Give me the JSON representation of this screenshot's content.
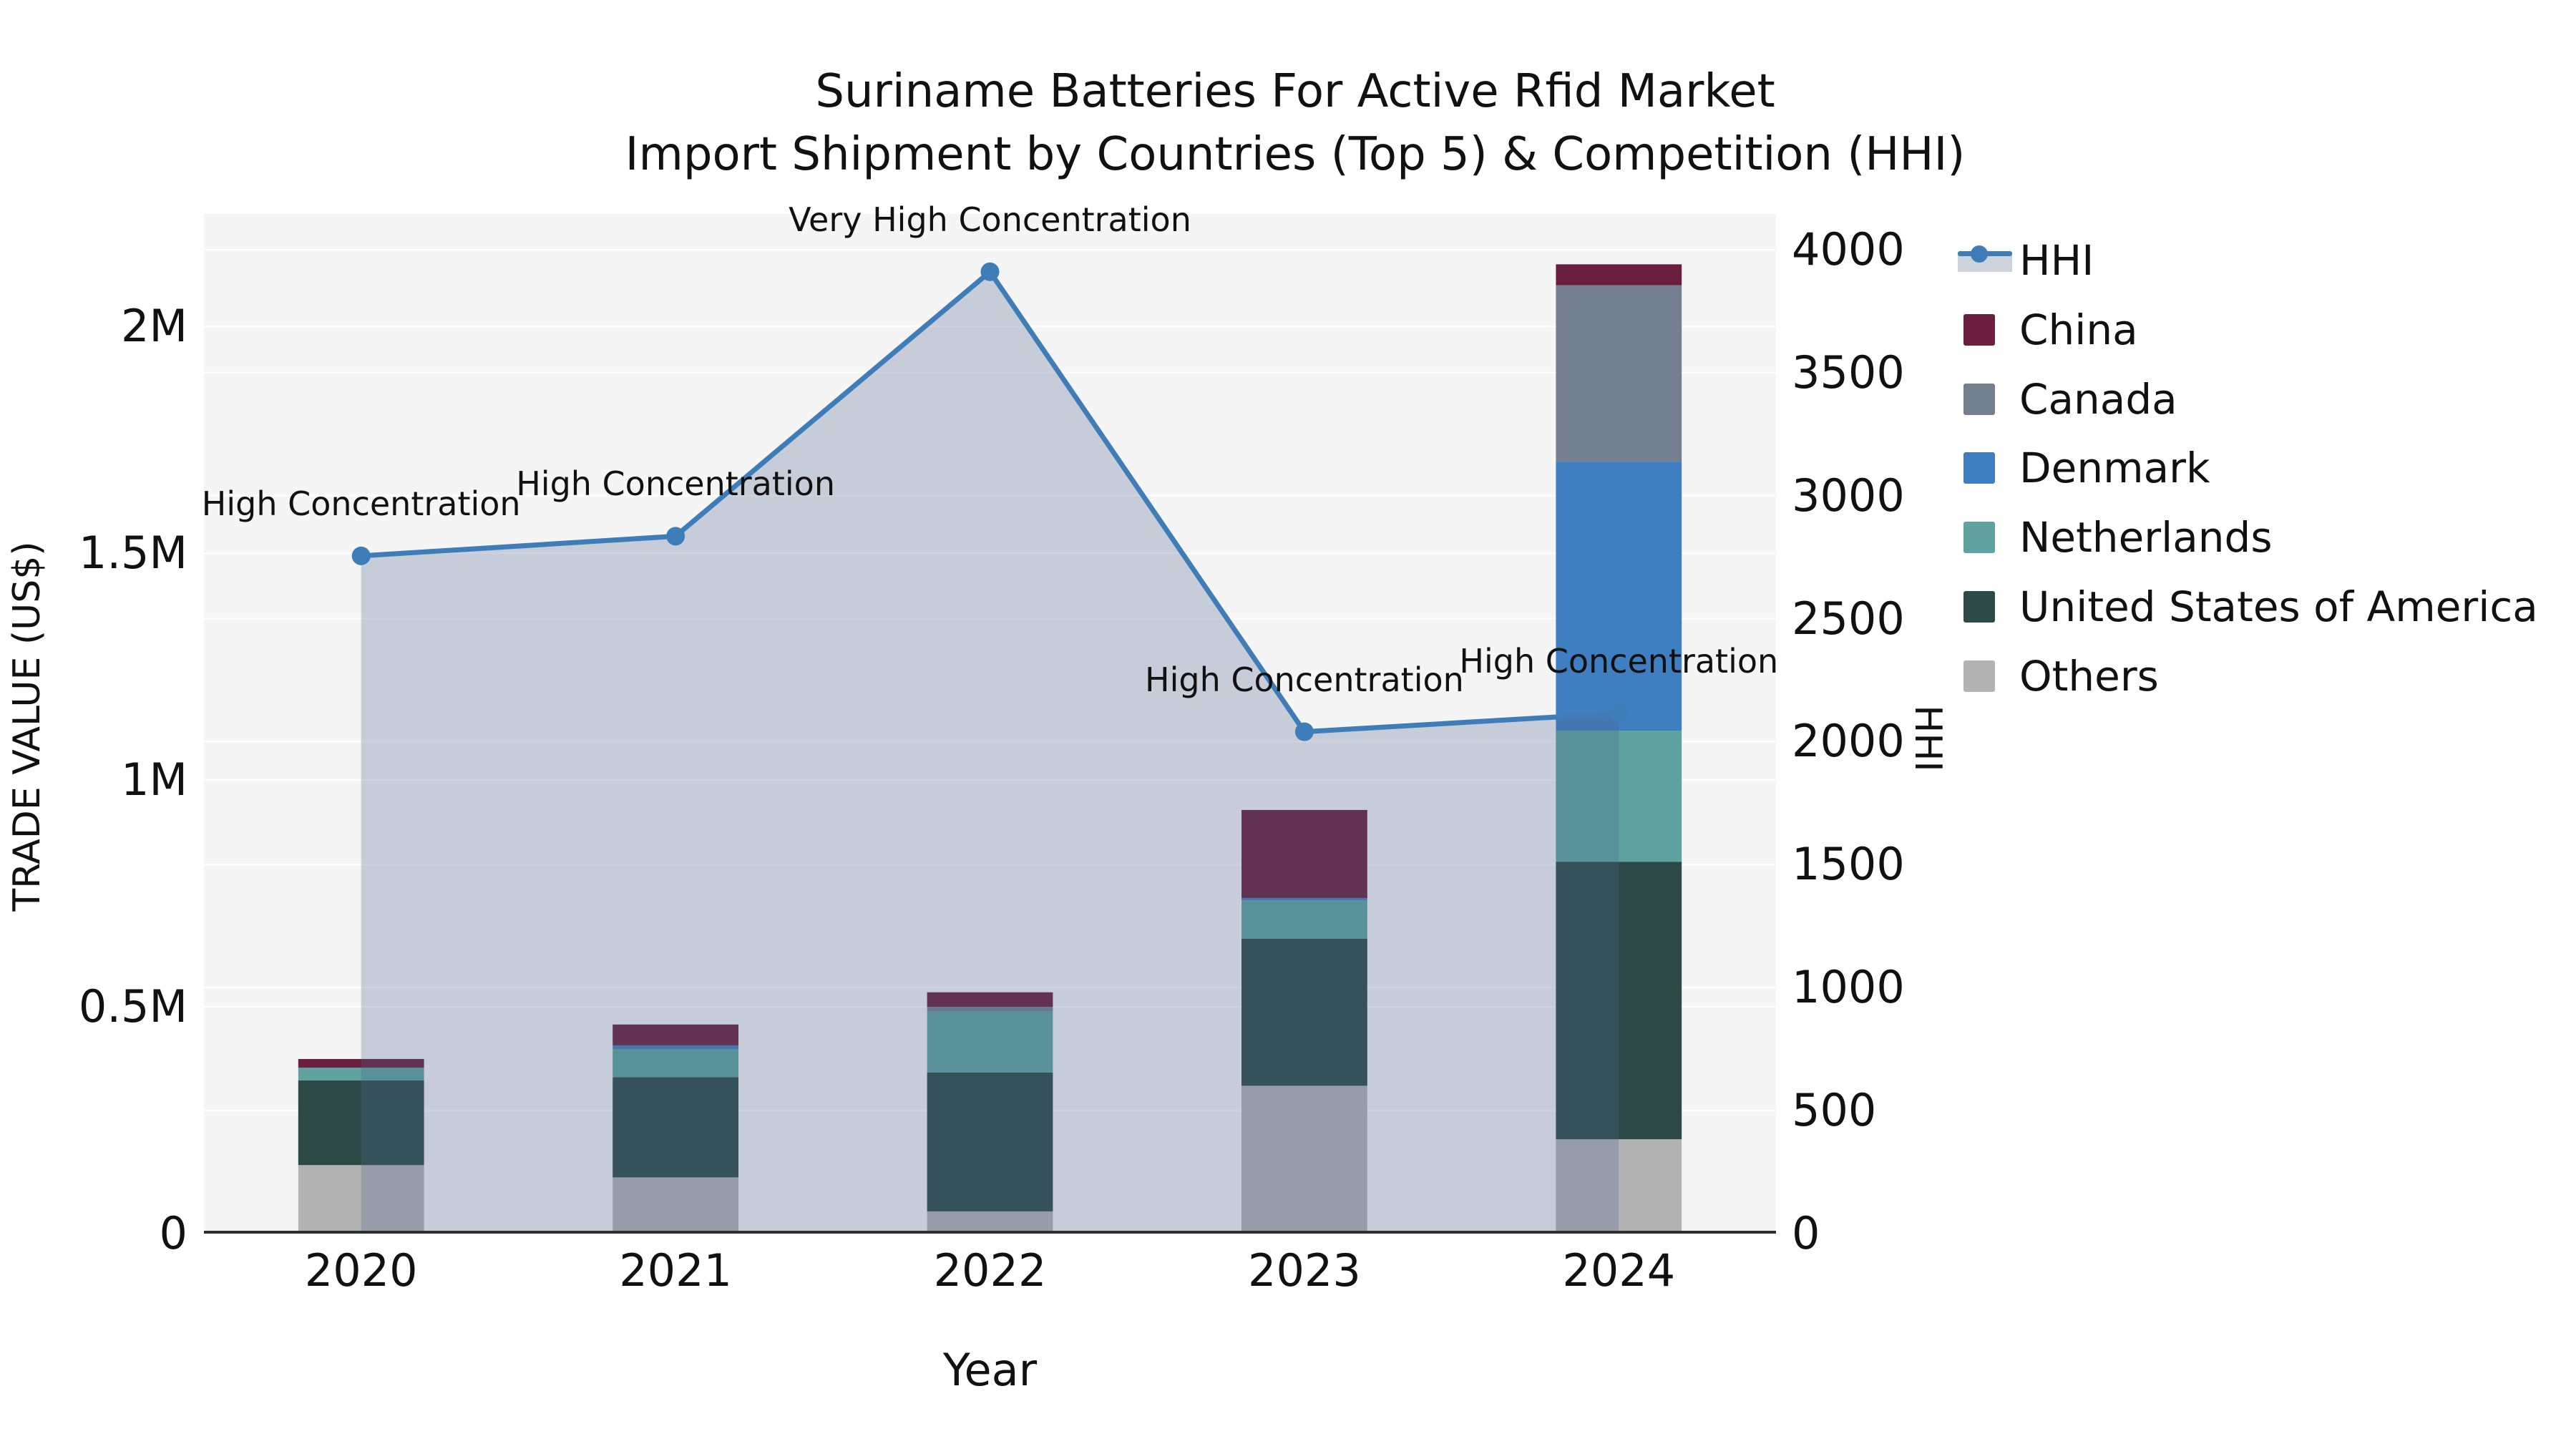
{
  "figure": {
    "title_line1": "Suriname Batteries For Active Rfid Market",
    "title_line2": "Import Shipment by Countries (Top 5) & Competition (HHI)",
    "xlabel": "Year",
    "ylabel_left": "TRADE VALUE (US$)",
    "ylabel_right": "HHI"
  },
  "colors": {
    "hhi_line": "#3f7db8",
    "hhi_area_fill": "rgba(74,102,140,0.28)",
    "plot_background": "#f5f5f5",
    "gridline": "#ffffff",
    "axis_line": "#2f2f2f",
    "china": "#6b1f3e",
    "canada": "#74808f",
    "denmark": "#3f7fc1",
    "netherlands": "#5fa2a0",
    "usa": "#2d4a47",
    "others": "#b3b3b3"
  },
  "chart_data": {
    "type": "bar",
    "subtype": "stacked-bars-with-line-dual-axis",
    "title": "Suriname Batteries For Active Rfid Market — Import Shipment by Countries (Top 5) & Competition (HHI)",
    "xlabel": "Year",
    "categories": [
      "2020",
      "2021",
      "2022",
      "2023",
      "2024"
    ],
    "series": [
      {
        "name": "Others",
        "color": "#b3b3b3",
        "values": [
          151000,
          124000,
          49000,
          326000,
          208000
        ]
      },
      {
        "name": "United States of America",
        "color": "#2d4a47",
        "values": [
          187000,
          221000,
          306000,
          324000,
          612000
        ]
      },
      {
        "name": "Netherlands",
        "color": "#5fa2a0",
        "values": [
          28000,
          62000,
          135000,
          85000,
          289000
        ]
      },
      {
        "name": "Denmark",
        "color": "#3f7fc1",
        "values": [
          0,
          8000,
          0,
          5000,
          593000
        ]
      },
      {
        "name": "Canada",
        "color": "#74808f",
        "values": [
          0,
          0,
          10000,
          0,
          389000
        ]
      },
      {
        "name": "China",
        "color": "#6b1f3e",
        "values": [
          19000,
          46000,
          32000,
          194000,
          46000
        ]
      }
    ],
    "bar_totals": [
      385000,
      461000,
      532000,
      934000,
      2137000
    ],
    "line_series": {
      "name": "HHI",
      "color": "#3f7db8",
      "area_fill": "rgba(74,102,140,0.28)",
      "values": [
        2755,
        2835,
        3910,
        2040,
        2115
      ]
    },
    "annotations": [
      {
        "category": "2020",
        "text": "High Concentration"
      },
      {
        "category": "2021",
        "text": "High Concentration"
      },
      {
        "category": "2022",
        "text": "Very High Concentration"
      },
      {
        "category": "2023",
        "text": "High Concentration"
      },
      {
        "category": "2024",
        "text": "High Concentration"
      }
    ],
    "y_left": {
      "label": "TRADE VALUE (US$)",
      "max": 2248000,
      "ticks": [
        {
          "value": 0,
          "label": "0"
        },
        {
          "value": 500000,
          "label": "0.5M"
        },
        {
          "value": 1000000,
          "label": "1M"
        },
        {
          "value": 1500000,
          "label": "1.5M"
        },
        {
          "value": 2000000,
          "label": "2M"
        }
      ]
    },
    "y_right": {
      "label": "HHI",
      "max": 4145,
      "ticks": [
        {
          "value": 0,
          "label": "0"
        },
        {
          "value": 500,
          "label": "500"
        },
        {
          "value": 1000,
          "label": "1000"
        },
        {
          "value": 1500,
          "label": "1500"
        },
        {
          "value": 2000,
          "label": "2000"
        },
        {
          "value": 2500,
          "label": "2500"
        },
        {
          "value": 3000,
          "label": "3000"
        },
        {
          "value": 3500,
          "label": "3500"
        },
        {
          "value": 4000,
          "label": "4000"
        }
      ]
    },
    "legend": {
      "position": "right",
      "items": [
        {
          "label": "HHI",
          "type": "line",
          "color": "#3f7db8"
        },
        {
          "label": "China",
          "type": "swatch",
          "color": "#6b1f3e"
        },
        {
          "label": "Canada",
          "type": "swatch",
          "color": "#74808f"
        },
        {
          "label": "Denmark",
          "type": "swatch",
          "color": "#3f7fc1"
        },
        {
          "label": "Netherlands",
          "type": "swatch",
          "color": "#5fa2a0"
        },
        {
          "label": "United States of America",
          "type": "swatch",
          "color": "#2d4a47"
        },
        {
          "label": "Others",
          "type": "swatch",
          "color": "#b3b3b3"
        }
      ]
    },
    "grid": true
  }
}
